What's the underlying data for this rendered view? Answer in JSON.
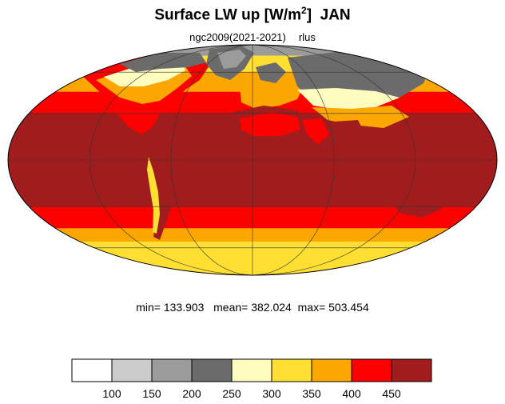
{
  "title_main": "Surface LW up [W/m",
  "title_sup": "2",
  "title_close": "]",
  "title_month": "JAN",
  "subtitle_run": "ngc2009(2021-2021)",
  "subtitle_var": "rlus",
  "stats": {
    "min_label": "min=",
    "min": "133.903",
    "mean_label": "mean=",
    "mean": "382.024",
    "max_label": "max=",
    "max": "503.454"
  },
  "colorbar": {
    "colors": [
      "#ffffff",
      "#cbcbcb",
      "#9b9b9b",
      "#6b6b6b",
      "#fffcc0",
      "#fedf32",
      "#fca600",
      "#fd0000",
      "#a11d1d"
    ],
    "tick_labels": [
      "100",
      "150",
      "200",
      "250",
      "300",
      "350",
      "400",
      "450"
    ]
  },
  "map": {
    "projection": "mollweide",
    "ocean_bands": [
      {
        "lat_min": 75,
        "lat_max": 90,
        "color": "#9b9b9b"
      },
      {
        "lat_min": 60,
        "lat_max": 75,
        "color": "#fedf32"
      },
      {
        "lat_min": 45,
        "lat_max": 60,
        "color": "#fca600"
      },
      {
        "lat_min": 30,
        "lat_max": 45,
        "color": "#fd0000"
      },
      {
        "lat_min": -30,
        "lat_max": 30,
        "color": "#a11d1d"
      },
      {
        "lat_min": -45,
        "lat_max": -30,
        "color": "#fd0000"
      },
      {
        "lat_min": -55,
        "lat_max": -45,
        "color": "#fca600"
      },
      {
        "lat_min": -90,
        "lat_max": -55,
        "color": "#fedf32"
      }
    ]
  }
}
